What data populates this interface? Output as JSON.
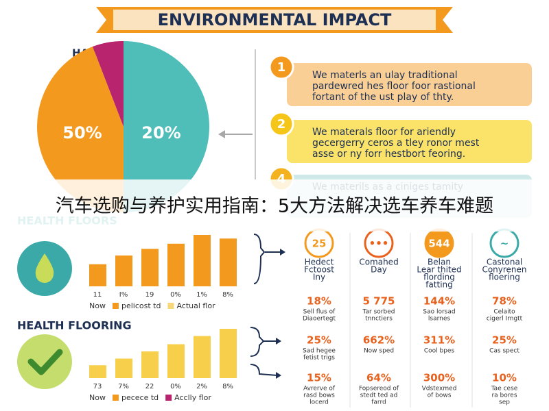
{
  "title": "ENVIRONMENTAL IMPACT",
  "pie": {
    "label": "HARDERDUOL",
    "labels": [
      "50%",
      "20%"
    ]
  },
  "items": [
    {
      "number": "1",
      "lines": [
        "We materls an ulay traditional",
        "pardewred hes floor foor rastional",
        "fortant of the ust play of thty."
      ]
    },
    {
      "number": "2",
      "lines": [
        "We materals floor for ariendly",
        "gecergerry ceros a tley ronor mest",
        "asse or ny forr hestbort feoring."
      ]
    },
    {
      "number": "4",
      "lines": [
        "We materils as a ciniges tamity"
      ]
    }
  ],
  "overlay": "汽车选购与养护实用指南：5大方法解决选车养车难题",
  "sections": [
    {
      "title": "HEALTH FLOORS",
      "bar_color": "#f39a1e",
      "values": [
        43,
        60,
        73,
        83,
        100,
        93
      ],
      "labels": [
        "11",
        "I%",
        "19",
        "0%",
        "1%",
        "8%"
      ],
      "legend": [
        {
          "text": "Now",
          "color": null
        },
        {
          "text": "pelicost td",
          "color": "#f39a1e"
        },
        {
          "text": "Actual flor",
          "color": "#f7d77a"
        }
      ]
    },
    {
      "title": "HEALTH FLOORING",
      "bar_color": "#f7cf4a",
      "values": [
        25,
        38,
        52,
        66,
        82,
        96
      ],
      "labels": [
        "73",
        "7%",
        "22",
        "0%",
        "2%",
        "8%"
      ],
      "legend": [
        {
          "text": "Now",
          "color": null
        },
        {
          "text": "pecece td",
          "color": "#f39a1e"
        },
        {
          "text": "Acclly flor",
          "color": "#b8246e"
        }
      ]
    }
  ],
  "columns": [
    {
      "icon": "25",
      "title": [
        "Hedect",
        "Fctoost",
        "Iny"
      ],
      "stats": [
        {
          "value": "18%",
          "lines": [
            "Sell flus of",
            "Diaoertegt"
          ]
        },
        {
          "value": "25%",
          "lines": [
            "Sad hegee",
            "fetist trigs"
          ]
        },
        {
          "value": "15%",
          "lines": [
            "Avrerve of",
            "rasd bows",
            "locerd"
          ]
        }
      ]
    },
    {
      "icon": "•••",
      "title": [
        "Comahed",
        "Day"
      ],
      "stats": [
        {
          "value": "5 775",
          "lines": [
            "Tar sorbed",
            "tnnctiers"
          ]
        },
        {
          "value": "662%",
          "lines": [
            "Now sped"
          ]
        },
        {
          "value": "64%",
          "lines": [
            "Fopsereod of",
            "stedt ted ad",
            "farrd"
          ]
        }
      ]
    },
    {
      "icon": "544",
      "title": [
        "Belan",
        "Lear thited",
        "flording",
        "fatting"
      ],
      "stats": [
        {
          "value": "144%",
          "lines": [
            "Sao lorsad",
            "lsarnes"
          ]
        },
        {
          "value": "311%",
          "lines": [
            "Cool bpes"
          ]
        },
        {
          "value": "300%",
          "lines": [
            "Vdstexmed",
            "of bows"
          ]
        }
      ]
    },
    {
      "icon": "~",
      "title": [
        "Castonal",
        "Conyrenen",
        "floering"
      ],
      "stats": [
        {
          "value": "78%",
          "lines": [
            "Celaito",
            "cigerl Irngtt"
          ]
        },
        {
          "value": "25%",
          "lines": [
            "Cas spect"
          ]
        },
        {
          "value": "10%",
          "lines": [
            "Tae cese",
            "ra bores",
            "sep"
          ]
        }
      ]
    }
  ]
}
